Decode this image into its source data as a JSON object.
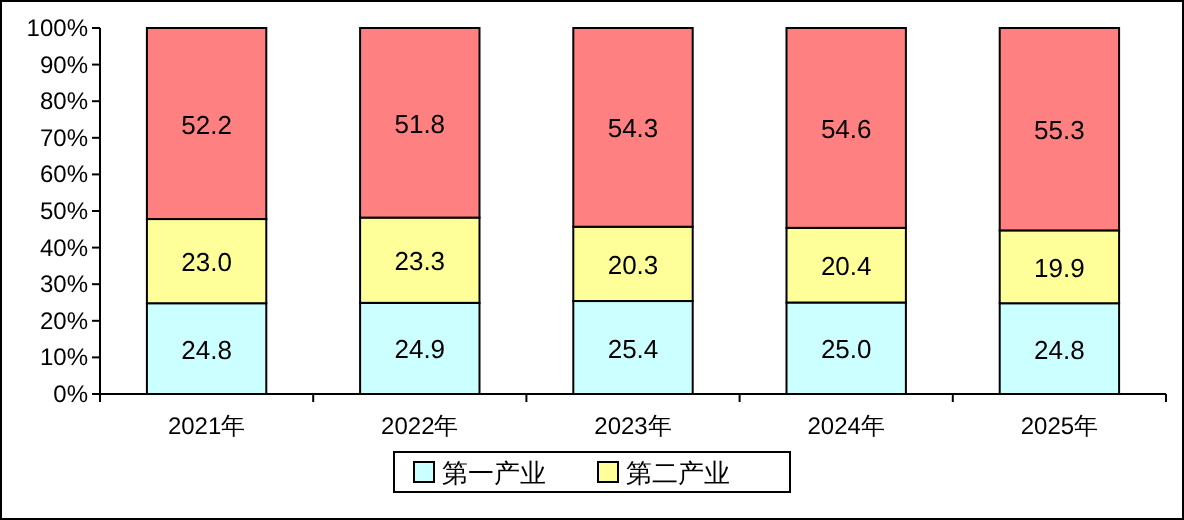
{
  "chart_data": {
    "type": "bar",
    "stacked": true,
    "categories": [
      "2021年",
      "2022年",
      "2023年",
      "2024年",
      "2025年"
    ],
    "series": [
      {
        "name": "第一产业",
        "color": "#ccffff",
        "values": [
          24.8,
          24.9,
          25.4,
          25.0,
          24.8
        ],
        "value_labels": [
          "24.8",
          "24.9",
          "25.4",
          "25.0",
          "24.8"
        ]
      },
      {
        "name": "第二产业",
        "color": "#ffff99",
        "values": [
          23.0,
          23.3,
          20.3,
          20.4,
          19.9
        ],
        "value_labels": [
          "23.0",
          "23.3",
          "20.3",
          "20.4",
          "19.9"
        ]
      },
      {
        "color": "#ff8080",
        "values": [
          52.2,
          51.8,
          54.3,
          54.6,
          55.3
        ],
        "value_labels": [
          "52.2",
          "51.8",
          "54.3",
          "54.6",
          "55.3"
        ]
      }
    ],
    "ylim": [
      0,
      100
    ],
    "yticks": [
      {
        "value": 0,
        "label": "0%"
      },
      {
        "value": 10,
        "label": "10%"
      },
      {
        "value": 20,
        "label": "20%"
      },
      {
        "value": 30,
        "label": "30%"
      },
      {
        "value": 40,
        "label": "40%"
      },
      {
        "value": 50,
        "label": "50%"
      },
      {
        "value": 60,
        "label": "60%"
      },
      {
        "value": 70,
        "label": "70%"
      },
      {
        "value": 80,
        "label": "80%"
      },
      {
        "value": 90,
        "label": "90%"
      },
      {
        "value": 100,
        "label": "100%"
      }
    ],
    "legend": "bottom"
  }
}
